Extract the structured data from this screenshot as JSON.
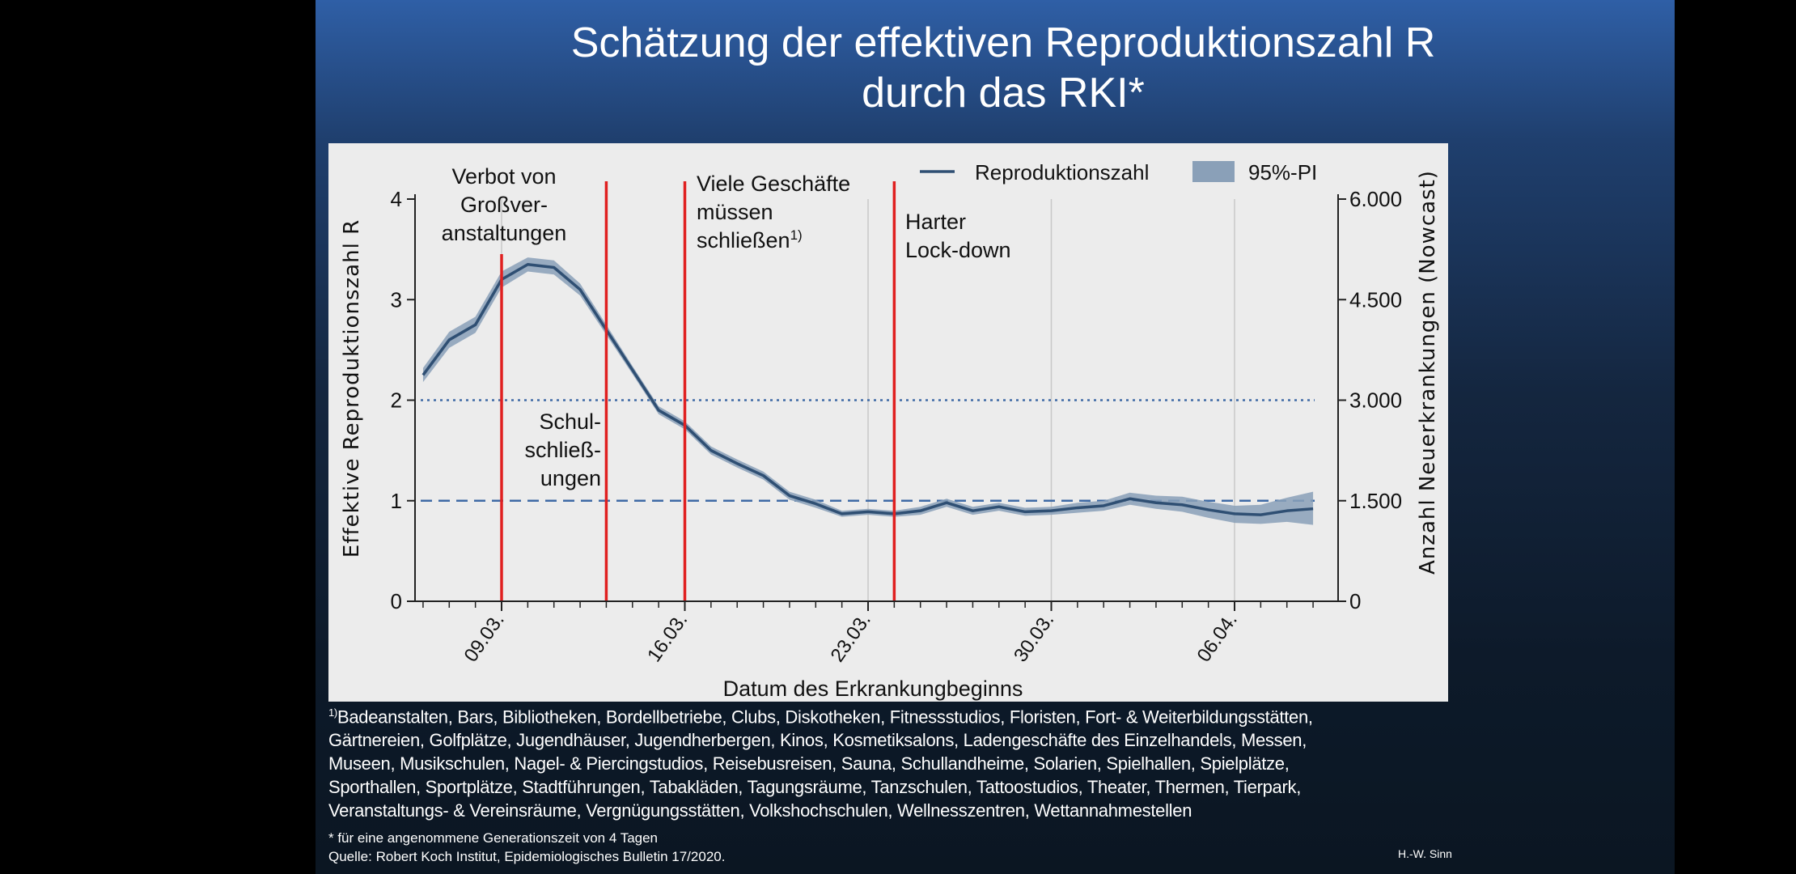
{
  "title": {
    "line1": "Schätzung der effektiven Reproduktionszahl R",
    "line2": "durch das RKI*"
  },
  "chart_data": {
    "type": "line",
    "x": [
      "06.03.",
      "07.03.",
      "08.03.",
      "09.03.",
      "10.03.",
      "11.03.",
      "12.03.",
      "13.03.",
      "14.03.",
      "15.03.",
      "16.03.",
      "17.03.",
      "18.03.",
      "19.03.",
      "20.03.",
      "21.03.",
      "22.03.",
      "23.03.",
      "24.03.",
      "25.03.",
      "26.03.",
      "27.03.",
      "28.03.",
      "29.03.",
      "30.03.",
      "31.03.",
      "01.04.",
      "02.04.",
      "03.04.",
      "04.04.",
      "05.04.",
      "06.04.",
      "07.04.",
      "08.04.",
      "09.04."
    ],
    "series": [
      {
        "name": "Reproduktionszahl",
        "values": [
          2.25,
          2.6,
          2.75,
          3.2,
          3.35,
          3.32,
          3.1,
          2.7,
          2.3,
          1.9,
          1.75,
          1.5,
          1.37,
          1.25,
          1.05,
          0.97,
          0.87,
          0.89,
          0.87,
          0.9,
          0.98,
          0.9,
          0.94,
          0.89,
          0.9,
          0.93,
          0.95,
          1.02,
          0.98,
          0.96,
          0.91,
          0.87,
          0.86,
          0.9,
          0.92
        ],
        "color": "#2f4f73"
      },
      {
        "name": "95%-PI",
        "lower": [
          2.18,
          2.52,
          2.67,
          3.12,
          3.28,
          3.25,
          3.04,
          2.65,
          2.26,
          1.86,
          1.71,
          1.46,
          1.33,
          1.21,
          1.01,
          0.93,
          0.84,
          0.86,
          0.84,
          0.86,
          0.94,
          0.86,
          0.9,
          0.85,
          0.86,
          0.88,
          0.9,
          0.96,
          0.92,
          0.89,
          0.83,
          0.78,
          0.77,
          0.79,
          0.76
        ],
        "upper": [
          2.32,
          2.68,
          2.83,
          3.28,
          3.42,
          3.39,
          3.16,
          2.75,
          2.34,
          1.94,
          1.79,
          1.54,
          1.41,
          1.29,
          1.09,
          1.01,
          0.9,
          0.92,
          0.9,
          0.94,
          1.02,
          0.94,
          0.98,
          0.93,
          0.94,
          0.98,
          1.0,
          1.08,
          1.05,
          1.04,
          0.99,
          0.95,
          0.96,
          1.03,
          1.09
        ],
        "color": "#8aa0b8"
      }
    ],
    "xticks": [
      "09.03.",
      "16.03.",
      "23.03.",
      "30.03.",
      "06.04."
    ],
    "yticks_left": [
      "0",
      "1",
      "2",
      "3",
      "4"
    ],
    "yticks_right": [
      "0",
      "1.500",
      "3.000",
      "4.500",
      "6.000"
    ],
    "ylim": [
      0,
      4
    ],
    "ylim_right": [
      0,
      6000
    ],
    "xlabel": "Datum des Erkrankungbeginns",
    "ylabel": "Effektive Reproduktionszahl R",
    "ylabel_right": "Anzahl Neuerkrankungen (Nowcast)",
    "reference_lines": [
      {
        "value": 2,
        "style": "dotted"
      },
      {
        "value": 1,
        "style": "dashed"
      }
    ],
    "legend": {
      "placement": "top-right",
      "line": "Reproduktionszahl",
      "band": "95%-PI"
    },
    "events": [
      {
        "date": "09.03.",
        "lines": [
          "Verbot von",
          "Großver-",
          "anstaltungen"
        ]
      },
      {
        "date": "13.03.",
        "lines": [
          "Schul-",
          "schließ-",
          "ungen"
        ]
      },
      {
        "date": "16.03.",
        "lines": [
          "Viele Geschäfte",
          "müssen",
          "schließen"
        ],
        "sup": "1)"
      },
      {
        "date": "24.03.",
        "lines": [
          "Harter",
          "Lock-down"
        ]
      }
    ],
    "event_color": "#e02020"
  },
  "footnote": {
    "marker": "1)",
    "lines": [
      "Badeanstalten, Bars, Bibliotheken, Bordellbetriebe, Clubs, Diskotheken, Fitnessstudios,  Floristen,  Fort- & Weiterbildungsstätten,",
      "Gärtnereien,  Golfplätze,  Jugendhäuser,  Jugendherbergen,  Kinos,  Kosmetiksalons,  Ladengeschäfte des Einzelhandels, Messen,",
      "Museen,  Musikschulen,  Nagel- &  Piercingstudios,  Reisebusreisen, Sauna,  Schullandheime,  Solarien,  Spielhallen, Spielplätze,",
      "Sporthallen, Sportplätze, Stadtführungen,  Tabakläden,  Tagungsräume,  Tanzschulen,  Tattoostudios,  Theater,  Thermen,  Tierpark,",
      "Veranstaltungs- &  Vereinsräume,  Vergnügungsstätten,  Volkshochschulen,  Wellnesszentren,  Wettannahmestellen"
    ]
  },
  "note": "* für eine angenommene Generationszeit von 4 Tagen",
  "source": "Quelle: Robert Koch Institut,  Epidemiologisches Bulletin 17/2020.",
  "author": "H.-W. Sinn"
}
